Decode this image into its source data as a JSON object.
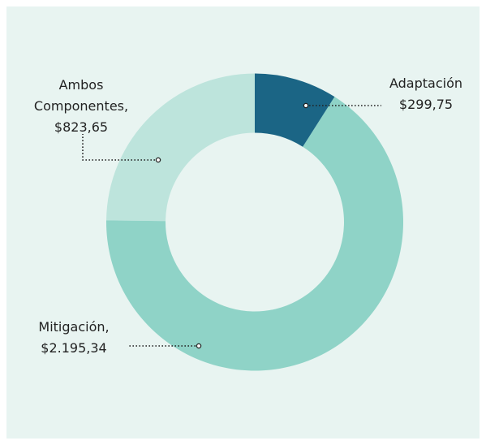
{
  "chart_data": {
    "type": "donut",
    "categories": [
      "Adaptación",
      "Mitigación,",
      "Ambos Componentes,"
    ],
    "values": [
      299.75,
      2195.34,
      823.65
    ],
    "value_labels": [
      "$299,75",
      "$2.195,34",
      "$823,65"
    ],
    "colors": [
      "#1b6585",
      "#8fd3c7",
      "#bde4dc"
    ]
  }
}
